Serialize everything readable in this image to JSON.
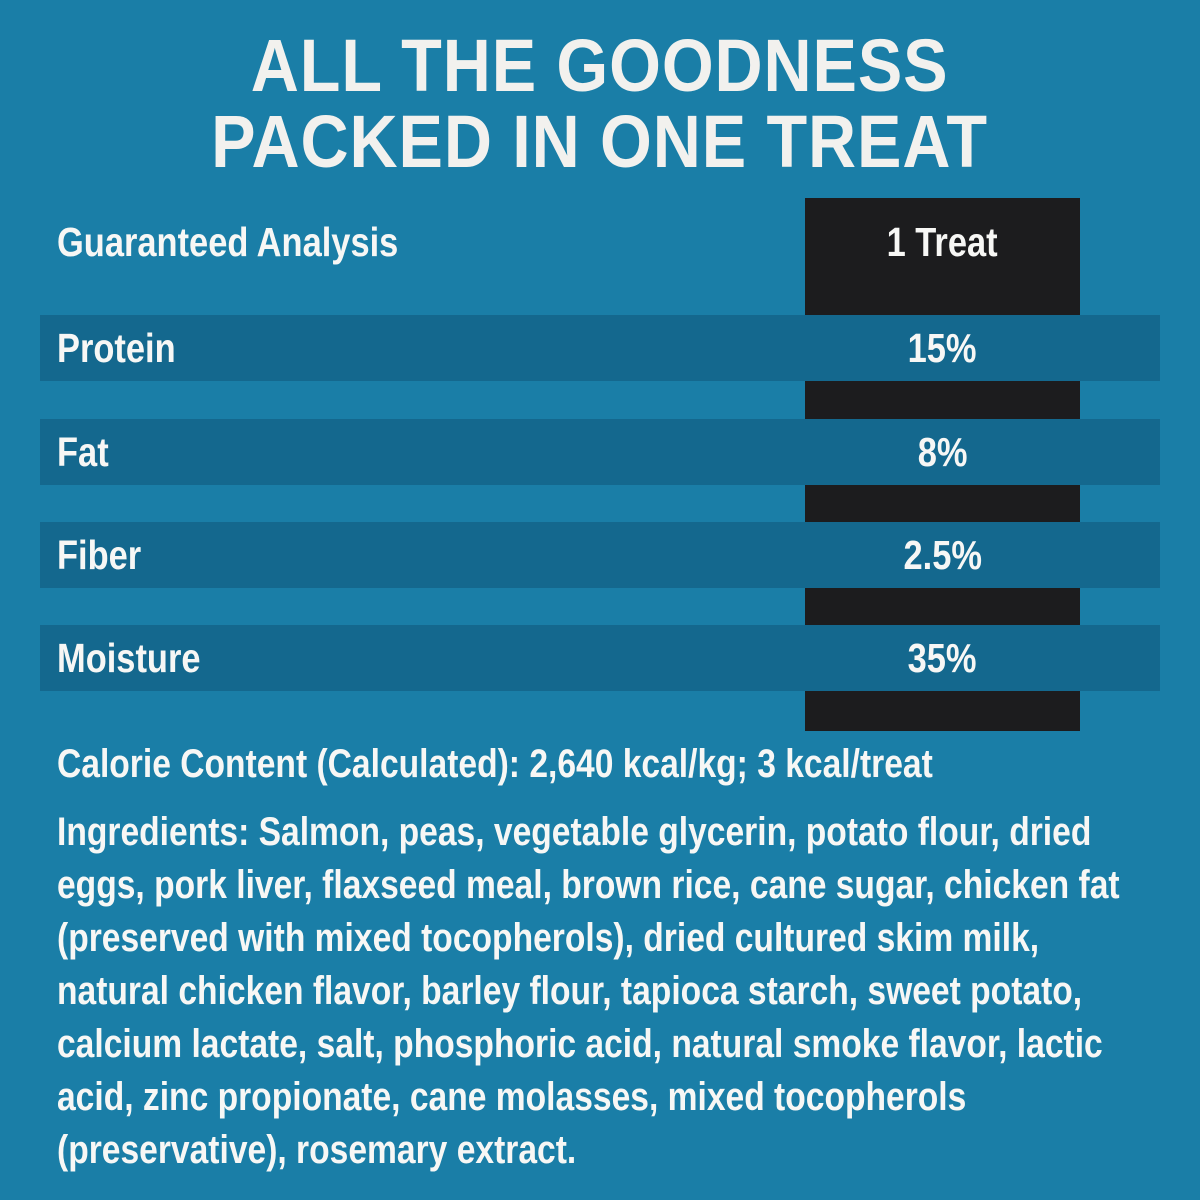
{
  "colors": {
    "background": "#1a7ea7",
    "row_stripe": "#14688e",
    "dark_column": "#1c1c1e",
    "text_primary": "#f7f7f5"
  },
  "title": {
    "line1": "ALL THE GOODNESS",
    "line2": "PACKED IN ONE TREAT"
  },
  "analysis_table": {
    "header_label": "Guaranteed Analysis",
    "column_header": "1 Treat",
    "rows": [
      {
        "label": "Protein",
        "value": "15%"
      },
      {
        "label": "Fat",
        "value": "8%"
      },
      {
        "label": "Fiber",
        "value": "2.5%"
      },
      {
        "label": "Moisture",
        "value": "35%"
      }
    ]
  },
  "calorie_content": {
    "label": "Calorie Content (Calculated):",
    "value": "2,640 kcal/kg; 3 kcal/treat"
  },
  "ingredients": {
    "label": "Ingredients:",
    "text": "Salmon, peas, vegetable glycerin, potato flour, dried eggs, pork liver, flaxseed meal, brown rice, cane sugar, chicken fat (preserved with mixed tocopherols), dried cultured skim milk, natural chicken flavor, barley flour, tapioca starch, sweet potato, calcium lactate, salt, phosphoric acid, natural smoke flavor, lactic acid, zinc propionate, cane molasses, mixed tocopherols (preservative), rosemary extract."
  }
}
